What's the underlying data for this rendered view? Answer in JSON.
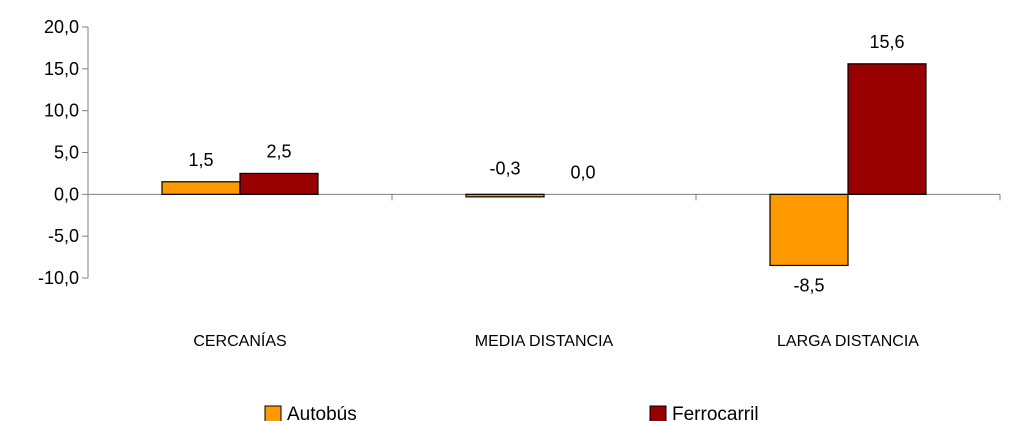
{
  "chart_data": {
    "type": "bar",
    "categories": [
      "CERCANÍAS",
      "MEDIA DISTANCIA",
      "LARGA DISTANCIA"
    ],
    "series": [
      {
        "name": "Autobús",
        "values": [
          1.5,
          -0.3,
          -8.5
        ],
        "labels": [
          "1,5",
          "-0,3",
          "-8,5"
        ],
        "color": "#FF9900"
      },
      {
        "name": "Ferrocarril",
        "values": [
          2.5,
          0.0,
          15.6
        ],
        "labels": [
          "2,5",
          "0,0",
          "15,6"
        ],
        "color": "#990000"
      }
    ],
    "y_ticks": [
      20,
      15,
      10,
      5,
      0,
      -5,
      -10
    ],
    "y_tick_labels": [
      "20,0",
      "15,0",
      "10,0",
      "5,0",
      "0,0",
      "-5,0",
      "-10,0"
    ],
    "ylim": [
      -10,
      20
    ],
    "grid": false,
    "legend_position": "bottom"
  }
}
